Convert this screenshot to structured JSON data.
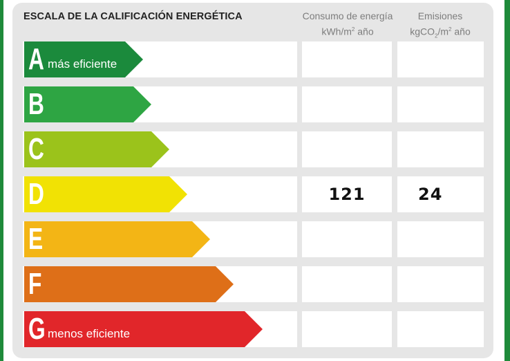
{
  "title": "ESCALA DE LA CALIFICACIÓN ENERGÉTICA",
  "columns": {
    "consumo": {
      "line1": "Consumo de energía",
      "line2_base": "kWh/m",
      "line2_sup": "2",
      "line2_tail": " año"
    },
    "emisiones": {
      "line1": "Emisiones",
      "line2_base": "kgCO",
      "line2_sub": "2",
      "line2_mid": "/m",
      "line2_sup": "2",
      "line2_tail": " año"
    }
  },
  "ratings": [
    {
      "letter": "A",
      "desc": "más eficiente",
      "color": "#1b8a3c",
      "consumo": "",
      "emisiones": ""
    },
    {
      "letter": "B",
      "desc": "",
      "color": "#2ea543",
      "consumo": "",
      "emisiones": ""
    },
    {
      "letter": "C",
      "desc": "",
      "color": "#9bc31b",
      "consumo": "",
      "emisiones": ""
    },
    {
      "letter": "D",
      "desc": "",
      "color": "#f1e204",
      "consumo": "121",
      "emisiones": "24"
    },
    {
      "letter": "E",
      "desc": "",
      "color": "#f3b515",
      "consumo": "",
      "emisiones": ""
    },
    {
      "letter": "F",
      "desc": "",
      "color": "#de6f18",
      "consumo": "",
      "emisiones": ""
    },
    {
      "letter": "G",
      "desc": "menos eficiente",
      "color": "#e1262a",
      "consumo": "",
      "emisiones": ""
    }
  ]
}
